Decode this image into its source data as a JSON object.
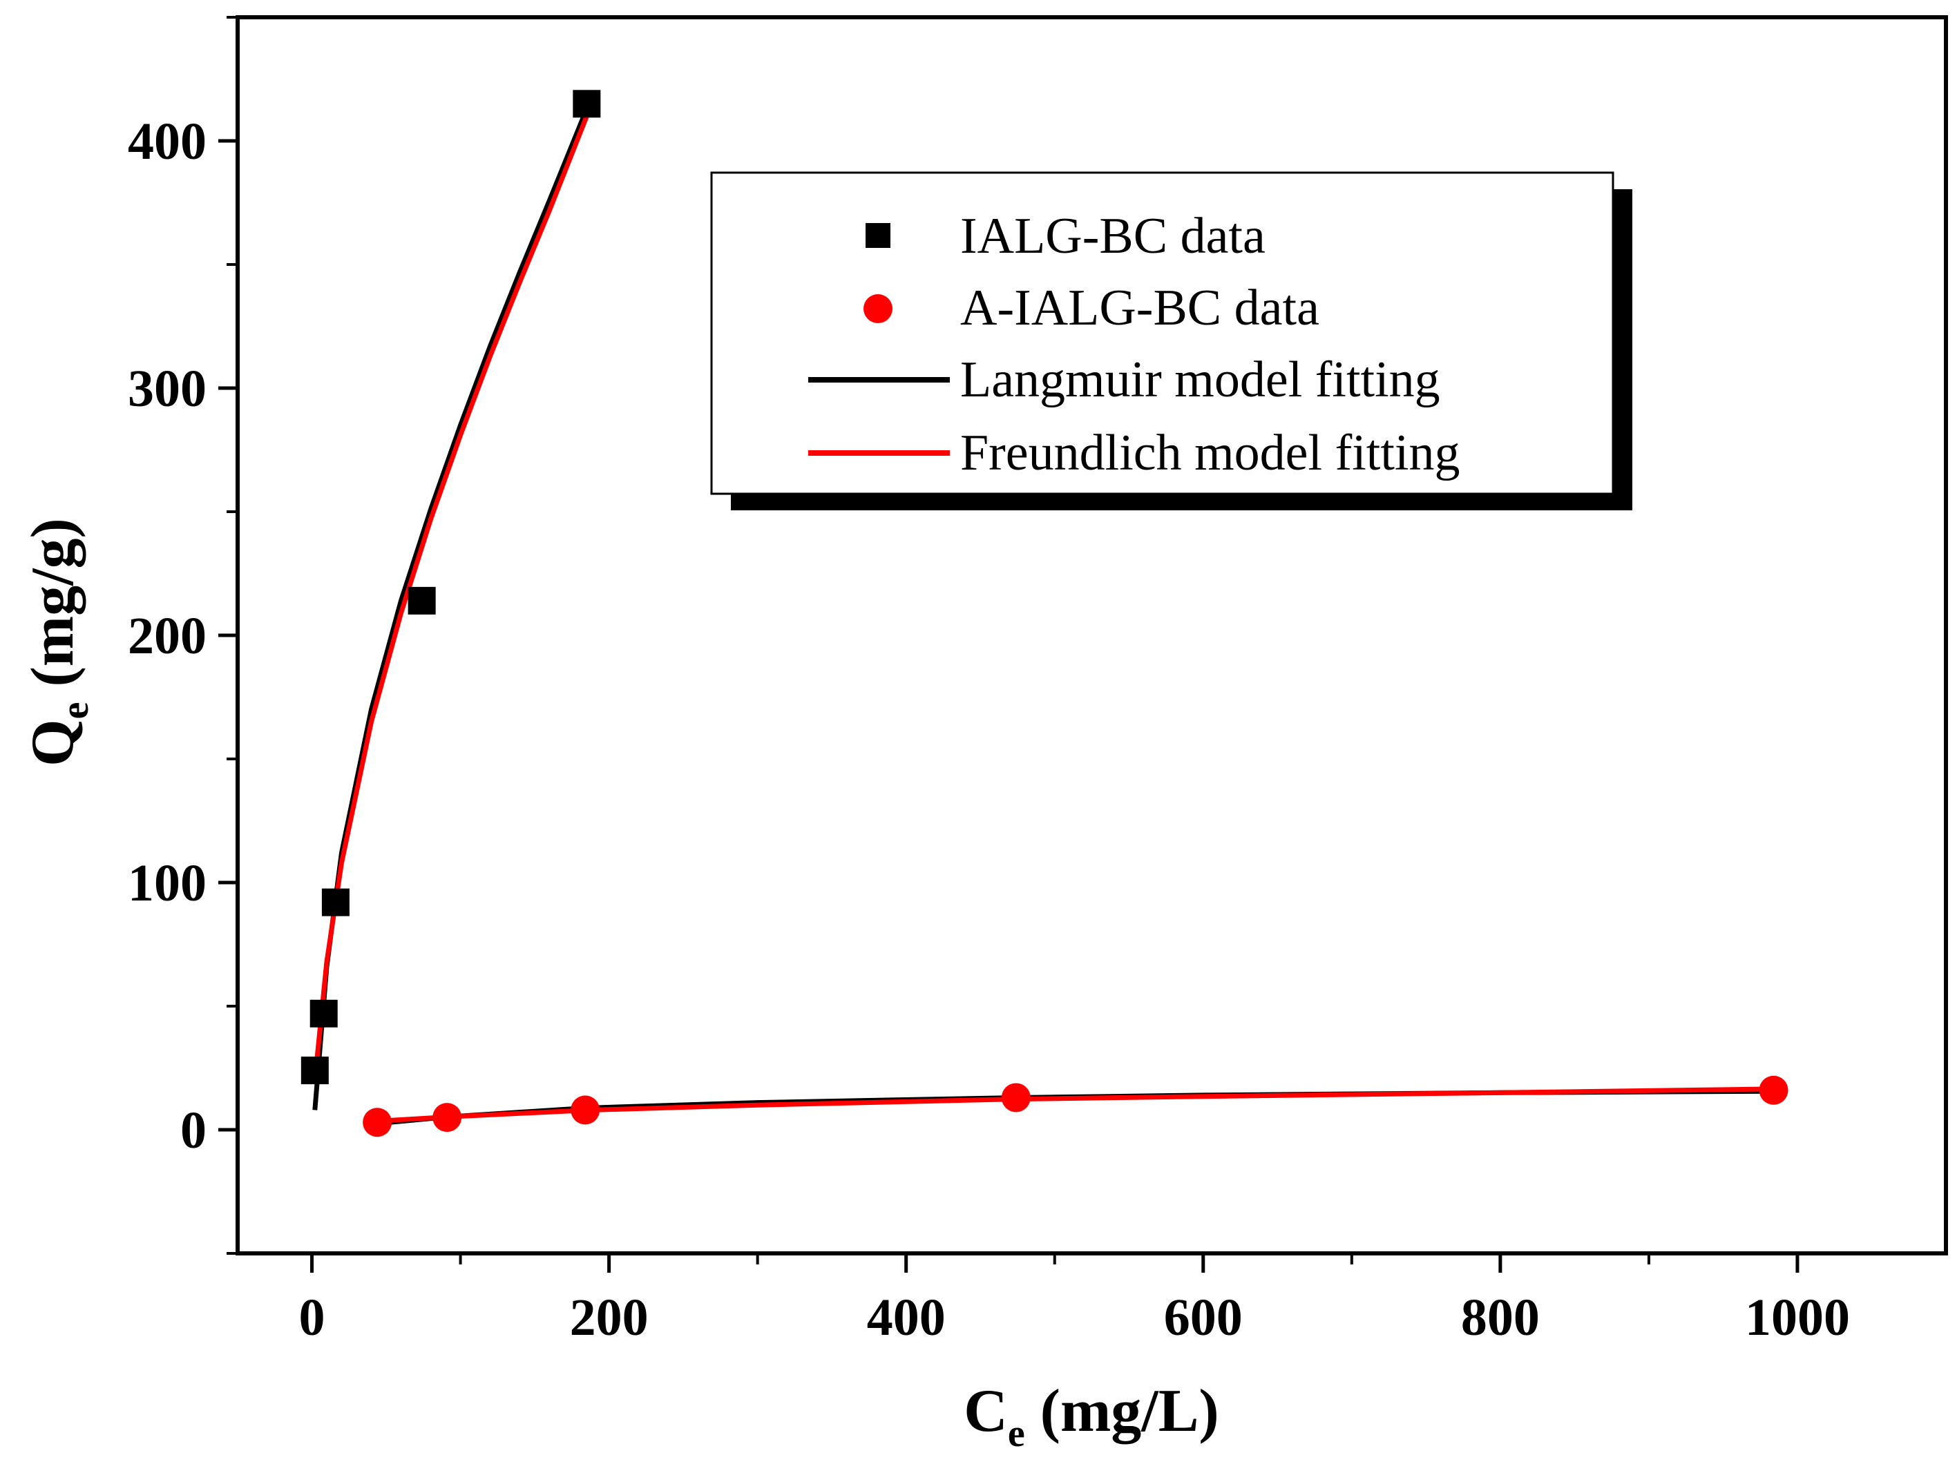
{
  "chart_data": {
    "type": "scatter",
    "title": "",
    "xlabel": {
      "main": "C",
      "sub": "e",
      "rest": " (mg/L)"
    },
    "ylabel": {
      "main": "Q",
      "sub": "e",
      "rest": " (mg/g)"
    },
    "xlim": [
      -50,
      1100
    ],
    "ylim": [
      -50,
      450
    ],
    "xticks": [
      0,
      200,
      400,
      600,
      800,
      1000
    ],
    "yticks": [
      0,
      100,
      200,
      300,
      400
    ],
    "grid": false,
    "legend_position": "top-center",
    "series": [
      {
        "name": "IALG-BC data",
        "kind": "points",
        "marker": "square",
        "color": "#000000",
        "x": [
          2,
          8,
          16,
          74,
          185
        ],
        "y": [
          24,
          47,
          92,
          214,
          415
        ]
      },
      {
        "name": "A-IALG-BC data",
        "kind": "points",
        "marker": "circle",
        "color": "#ff0000",
        "x": [
          44,
          91,
          184,
          474,
          984
        ],
        "y": [
          3,
          5,
          8,
          13,
          16
        ]
      },
      {
        "name": "Langmuir model fitting",
        "kind": "line",
        "color": "#000000",
        "segments": [
          {
            "x": [
              2,
              10,
              20,
              40,
              60,
              80,
              100,
              120,
              140,
              160,
              185
            ],
            "y": [
              8,
              66,
              112,
              170,
              214,
              251,
              285,
              317,
              347,
              376,
              413
            ]
          },
          {
            "x": [
              44,
              91,
              184,
              300,
              474,
              600,
              800,
              984
            ],
            "y": [
              2.5,
              5.2,
              8.8,
              11.0,
              13.0,
              14.0,
              15.0,
              15.6
            ]
          }
        ]
      },
      {
        "name": "Freundlich model fitting",
        "kind": "line",
        "color": "#ff0000",
        "segments": [
          {
            "x": [
              2,
              10,
              20,
              40,
              60,
              80,
              100,
              120,
              140,
              160,
              185
            ],
            "y": [
              20,
              68,
              108,
              165,
              209,
              247,
              281,
              313,
              343,
              372,
              410
            ]
          },
          {
            "x": [
              44,
              91,
              184,
              300,
              474,
              600,
              800,
              984
            ],
            "y": [
              3.5,
              5.2,
              7.9,
              10.0,
              12.4,
              13.5,
              15.0,
              16.5
            ]
          }
        ]
      }
    ]
  }
}
